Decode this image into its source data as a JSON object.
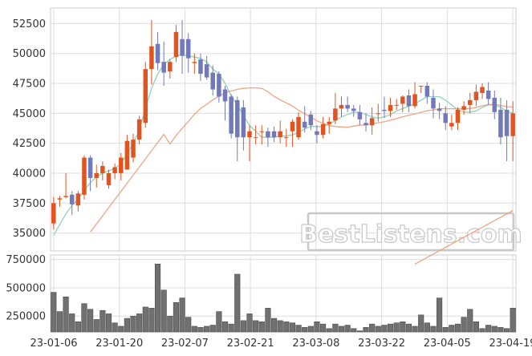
{
  "colors": {
    "up": "#e2541f",
    "down": "#7279b8",
    "volume": "#707070",
    "ma_fast": "#8fd3b8",
    "ma_slow": "#f0a488",
    "grid": "#dddddd",
    "watermark": "#c8c8c8"
  },
  "watermark": "BestListens.com",
  "chart_data": [
    {
      "type": "candlestick",
      "title": "",
      "xlabel": "",
      "ylabel": "",
      "grid": true,
      "ylim": [
        33500,
        53800
      ],
      "ytick_labels": [
        "35000",
        "37500",
        "40000",
        "42500",
        "45000",
        "47500",
        "50000",
        "52500"
      ],
      "xtick_labels": [
        "23-01-06",
        "23-01-20",
        "23-02-07",
        "23-02-21",
        "23-03-08",
        "23-03-22",
        "23-04-05",
        "23-04-19"
      ],
      "dates": [
        "23-01-02",
        "23-01-03",
        "23-01-04",
        "23-01-05",
        "23-01-06",
        "23-01-09",
        "23-01-10",
        "23-01-11",
        "23-01-12",
        "23-01-13",
        "23-01-16",
        "23-01-17",
        "23-01-18",
        "23-01-19",
        "23-01-20",
        "23-01-25",
        "23-01-26",
        "23-01-27",
        "23-01-30",
        "23-01-31",
        "23-02-01",
        "23-02-02",
        "23-02-03",
        "23-02-06",
        "23-02-07",
        "23-02-08",
        "23-02-09",
        "23-02-10",
        "23-02-13",
        "23-02-14",
        "23-02-15",
        "23-02-16",
        "23-02-17",
        "23-02-20",
        "23-02-21",
        "23-02-22",
        "23-02-23",
        "23-02-24",
        "23-02-27",
        "23-02-28",
        "23-03-02",
        "23-03-03",
        "23-03-06",
        "23-03-07",
        "23-03-08",
        "23-03-09",
        "23-03-10",
        "23-03-13",
        "23-03-14",
        "23-03-15",
        "23-03-16",
        "23-03-17",
        "23-03-20",
        "23-03-21",
        "23-03-22",
        "23-03-23",
        "23-03-24",
        "23-03-27",
        "23-03-28",
        "23-03-29",
        "23-03-30",
        "23-03-31",
        "23-04-03",
        "23-04-04",
        "23-04-05",
        "23-04-06",
        "23-04-07",
        "23-04-10",
        "23-04-11",
        "23-04-12",
        "23-04-13",
        "23-04-14",
        "23-04-17",
        "23-04-18",
        "23-04-19",
        "23-04-20"
      ],
      "open": [
        35800,
        37800,
        38000,
        38200,
        37300,
        38200,
        41300,
        39600,
        40000,
        39000,
        40000,
        40000,
        40300,
        41300,
        42800,
        44200,
        48700,
        50800,
        49300,
        48500,
        49700,
        51200,
        51200,
        49200,
        49500,
        49100,
        48400,
        48300,
        47000,
        46400,
        46100,
        45500,
        43000,
        43000,
        43500,
        43500,
        43500,
        43000,
        43000,
        43500,
        43000,
        44300,
        44900,
        43500,
        43200,
        44100,
        44400,
        45400,
        45700,
        45400,
        45100,
        44200,
        44000,
        45000,
        45300,
        45200,
        45700,
        45800,
        46500,
        45600,
        47300,
        47300,
        46300,
        45400,
        45000,
        43900,
        44200,
        45300,
        45700,
        46100,
        46700,
        46900,
        46300,
        45300,
        45300,
        43100
      ],
      "close": [
        37500,
        37900,
        38100,
        37400,
        38300,
        41300,
        39600,
        40000,
        40600,
        40000,
        40500,
        41300,
        42700,
        42800,
        44500,
        48700,
        50600,
        49200,
        48400,
        49300,
        51800,
        49800,
        49600,
        49300,
        48300,
        48000,
        47000,
        46400,
        46000,
        43300,
        43000,
        43000,
        43500,
        43000,
        43500,
        43000,
        43000,
        43500,
        43000,
        44300,
        44700,
        43800,
        44000,
        43200,
        44100,
        44300,
        45400,
        45700,
        45400,
        45200,
        44500,
        44000,
        44600,
        45000,
        45200,
        45700,
        45700,
        46400,
        45600,
        46600,
        47300,
        46400,
        45400,
        45200,
        44200,
        44200,
        45300,
        45600,
        46100,
        46800,
        47200,
        46200,
        45100,
        43000,
        43100,
        45000
      ],
      "high": [
        38000,
        38100,
        40000,
        38500,
        38500,
        41500,
        41500,
        40700,
        41000,
        40300,
        40800,
        41700,
        43200,
        43300,
        44800,
        49300,
        52800,
        51800,
        51000,
        49500,
        52400,
        52800,
        51700,
        50000,
        50000,
        49800,
        49000,
        48500,
        47300,
        46600,
        46400,
        46100,
        44000,
        44000,
        44000,
        43800,
        43900,
        44400,
        43700,
        44500,
        45100,
        45600,
        45200,
        44000,
        44700,
        44700,
        46700,
        46400,
        46400,
        45700,
        45700,
        45000,
        45500,
        45800,
        46400,
        46300,
        46200,
        46500,
        47000,
        47600,
        47300,
        47600,
        47000,
        45900,
        45600,
        44900,
        45500,
        46000,
        46700,
        47400,
        47500,
        47600,
        46900,
        46300,
        46100,
        46000
      ],
      "low": [
        35300,
        37200,
        37900,
        36500,
        36800,
        37800,
        38500,
        38800,
        39400,
        38700,
        39500,
        39400,
        40300,
        40900,
        42400,
        43800,
        47400,
        48600,
        47300,
        47900,
        49300,
        48300,
        48400,
        48300,
        47700,
        47800,
        46500,
        45900,
        44400,
        42900,
        41000,
        41900,
        41000,
        42400,
        42400,
        42200,
        42600,
        42500,
        42200,
        42200,
        42800,
        43400,
        43600,
        42500,
        42900,
        43300,
        44100,
        44700,
        45100,
        44700,
        44000,
        43500,
        43200,
        44300,
        44600,
        44700,
        45300,
        45100,
        45100,
        45400,
        46700,
        45800,
        44600,
        44500,
        43600,
        43600,
        43600,
        44900,
        45000,
        45600,
        46200,
        45700,
        44500,
        42400,
        41000,
        41000
      ],
      "ma_fast": [
        34800,
        35700,
        36600,
        37300,
        37800,
        38600,
        39200,
        39700,
        40000,
        40200,
        40400,
        40800,
        41600,
        42500,
        43600,
        45400,
        47100,
        48300,
        49100,
        49500,
        49800,
        49900,
        49800,
        49700,
        49600,
        49300,
        48700,
        48300,
        47500,
        46500,
        45700,
        44800,
        44000,
        43500,
        43000,
        43000,
        43000,
        43100,
        43100,
        43200,
        43400,
        43700,
        43900,
        43900,
        43900,
        44100,
        44400,
        44700,
        44900,
        45100,
        45100,
        44900,
        44700,
        44600,
        44700,
        44900,
        45200,
        45400,
        45600,
        45800,
        46100,
        46400,
        46400,
        46400,
        46100,
        45700,
        45300,
        45100,
        45100,
        45200,
        45500,
        45700,
        45700,
        45500,
        45200,
        45000
      ],
      "ma_slow": [
        null,
        null,
        null,
        null,
        null,
        null,
        null,
        null,
        null,
        null,
        null,
        null,
        null,
        null,
        null,
        null,
        null,
        null,
        null,
        null,
        null,
        null,
        null,
        null,
        null,
        null,
        null,
        null,
        null,
        null,
        null,
        null,
        null,
        null,
        null,
        null,
        null,
        null,
        null,
        null,
        null,
        null,
        null,
        null,
        null,
        null,
        null,
        null,
        null,
        null,
        null,
        null,
        null,
        null,
        null,
        null,
        null,
        null,
        null,
        null,
        null,
        null,
        null,
        null,
        null,
        null,
        null,
        null,
        null,
        null,
        null,
        null,
        null,
        null,
        null,
        null
      ],
      "ma_fast_label": "",
      "ma_slow_label": ""
    },
    {
      "type": "bar",
      "title": "",
      "xlabel": "",
      "ylabel": "",
      "ylim": [
        110000,
        790000
      ],
      "ytick_labels": [
        "250000",
        "500000",
        "750000"
      ],
      "volume": [
        460000,
        290000,
        420000,
        270000,
        200000,
        360000,
        310000,
        220000,
        300000,
        270000,
        190000,
        160000,
        230000,
        250000,
        270000,
        330000,
        320000,
        710000,
        480000,
        250000,
        370000,
        410000,
        240000,
        160000,
        150000,
        160000,
        170000,
        290000,
        200000,
        180000,
        620000,
        210000,
        270000,
        210000,
        200000,
        320000,
        230000,
        210000,
        200000,
        190000,
        170000,
        150000,
        160000,
        200000,
        180000,
        140000,
        180000,
        160000,
        170000,
        140000,
        120000,
        150000,
        180000,
        160000,
        170000,
        180000,
        190000,
        200000,
        180000,
        160000,
        260000,
        190000,
        160000,
        410000,
        150000,
        170000,
        180000,
        240000,
        310000,
        200000,
        140000,
        170000,
        160000,
        150000,
        140000,
        320000
      ]
    }
  ]
}
